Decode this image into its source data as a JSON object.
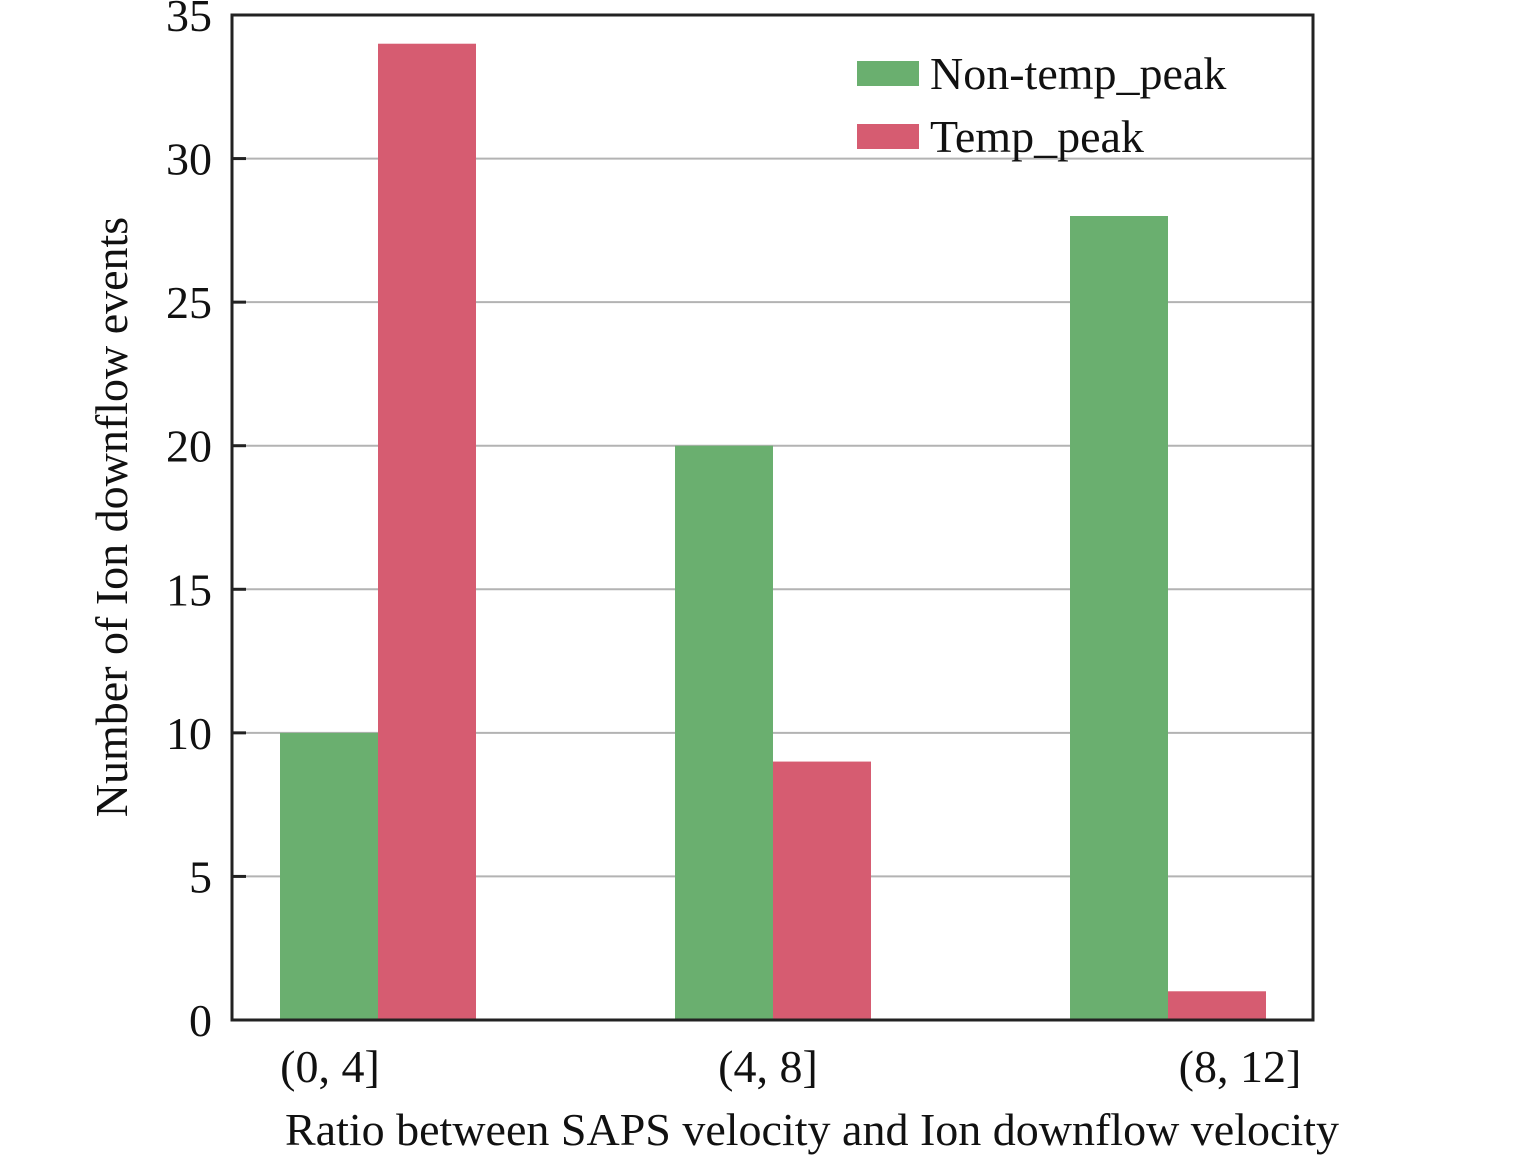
{
  "chart_data": {
    "type": "bar",
    "title": "",
    "xlabel": "Ratio between  SAPS velocity and Ion downflow velocity",
    "ylabel": "Number of Ion downflow events",
    "categories": [
      "(0, 4]",
      "(4, 8]",
      "(8, 12]"
    ],
    "series": [
      {
        "name": "Non-temp_peak",
        "color": "#6aaf6f",
        "values": [
          10,
          20,
          28
        ]
      },
      {
        "name": "Temp_peak",
        "color": "#d65c71",
        "values": [
          34,
          9,
          1
        ]
      }
    ],
    "ylim": [
      0,
      35
    ],
    "yticks": [
      0,
      5,
      10,
      15,
      20,
      25,
      30,
      35
    ],
    "grid": true,
    "gridColor": "#b3b3b3",
    "legend_position": "top-right"
  }
}
